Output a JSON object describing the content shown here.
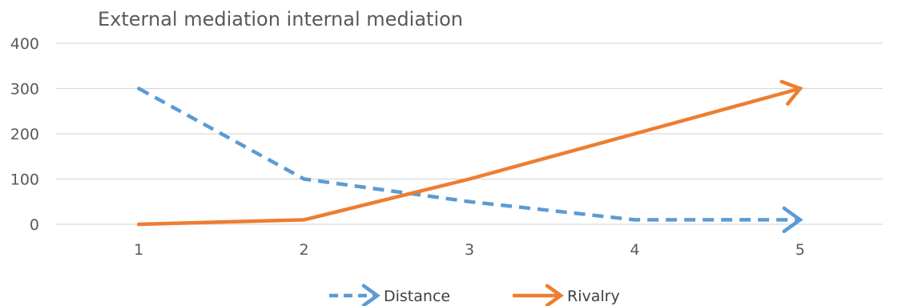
{
  "chart_data": {
    "type": "line",
    "title": "External mediation internal mediation",
    "xlabel": "",
    "ylabel": "",
    "categories": [
      "1",
      "2",
      "3",
      "4",
      "5"
    ],
    "ylim": [
      0,
      400
    ],
    "yticks": [
      0,
      100,
      200,
      300,
      400
    ],
    "grid": true,
    "legend_position": "bottom",
    "line_end": "arrow",
    "series": [
      {
        "name": "Distance",
        "values": [
          300,
          100,
          50,
          10,
          10
        ],
        "color": "#5B9BD5",
        "dash": "dashed"
      },
      {
        "name": "Rivalry",
        "values": [
          0,
          10,
          100,
          200,
          300
        ],
        "color": "#ED7D31",
        "dash": "solid"
      }
    ]
  }
}
